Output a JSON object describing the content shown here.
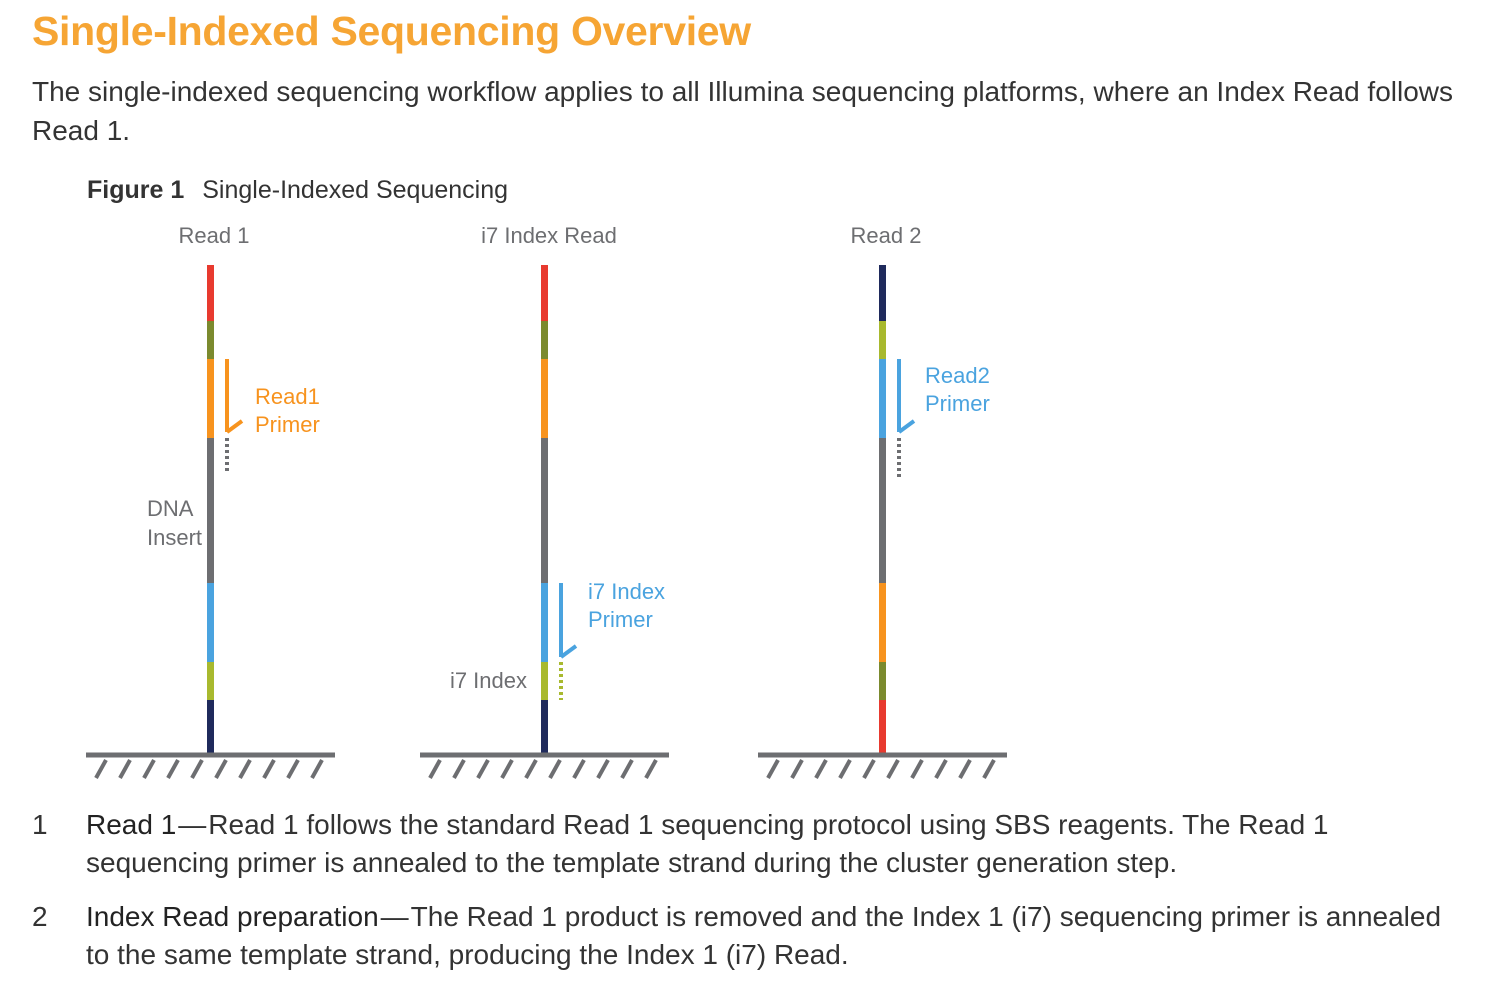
{
  "title": "Single-Indexed Sequencing Overview",
  "intro": "The single-indexed sequencing workflow applies to all Illumina sequencing platforms, where an Index Read follows Read 1.",
  "figure": {
    "number": "Figure 1",
    "caption": "Single-Indexed Sequencing",
    "panels": [
      {
        "heading": "Read 1",
        "primer_label": [
          "Read1",
          "Primer"
        ],
        "region_labels": [
          [
            "DNA",
            "Insert"
          ]
        ]
      },
      {
        "heading": "i7 Index Read",
        "primer_label": [
          "i7 Index",
          "Primer"
        ],
        "region_labels": [
          [
            "i7 Index"
          ]
        ]
      },
      {
        "heading": "Read 2",
        "primer_label": [
          "Read2",
          "Primer"
        ],
        "region_labels": []
      }
    ],
    "colors": {
      "red": "#e83a2f",
      "olive": "#7b8a2e",
      "orange": "#f7931e",
      "gray": "#6d6e71",
      "blue": "#4aa3df",
      "yellow_green": "#a8b92e",
      "navy": "#1f2a5c",
      "ground": "#6d6e71",
      "heading_text": "#6d6e71"
    }
  },
  "steps": [
    {
      "number": "1",
      "heading": "Read 1",
      "separator": "—",
      "body": "Read 1 follows the standard Read 1 sequencing protocol using SBS reagents. The Read 1 sequencing primer is annealed to the template strand during the cluster generation step."
    },
    {
      "number": "2",
      "heading": "Index Read preparation",
      "separator": "—",
      "body": "The Read 1 product is removed and the Index 1 (i7) sequencing primer is annealed to the same template strand, producing the Index 1 (i7) Read."
    }
  ]
}
